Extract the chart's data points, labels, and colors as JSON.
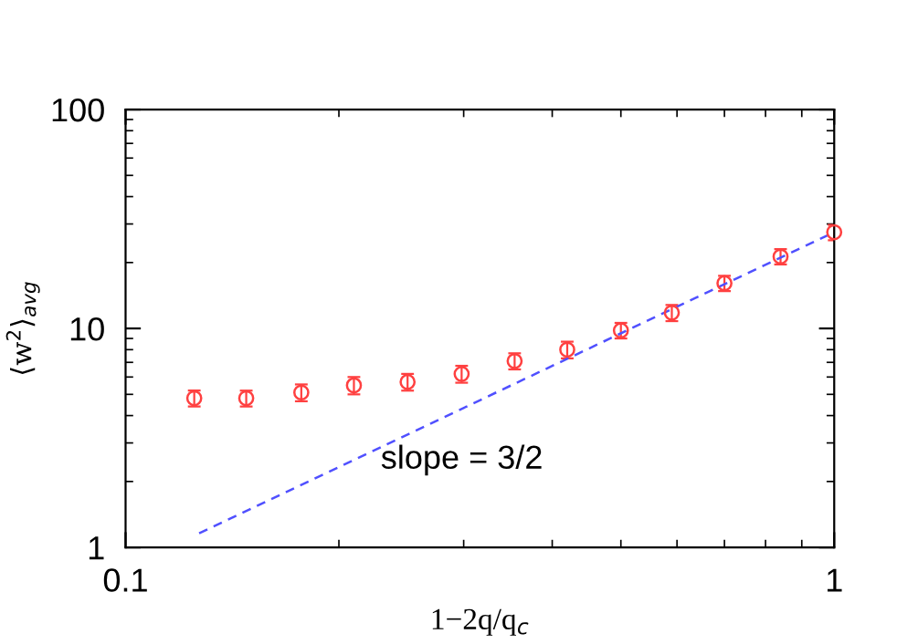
{
  "chart_data": {
    "type": "scatter",
    "xlabel": "1−2q/q$_{c}$",
    "ylabel": "⟨w$^{2}$⟩$_{avg}$",
    "log": "xy",
    "xlim": [
      0.1,
      1
    ],
    "ylim": [
      1,
      100
    ],
    "xticks": [
      0.1,
      1
    ],
    "yticks": [
      1,
      10,
      100
    ],
    "annotations": [
      "slope = 3/2"
    ],
    "grid": false,
    "legend": false,
    "series": [
      {
        "color": "#ff4040",
        "marker": "circle",
        "x": [
          0.125,
          0.148,
          0.177,
          0.21,
          0.25,
          0.298,
          0.354,
          0.42,
          0.5,
          0.59,
          0.7,
          0.84,
          1.0
        ],
        "values": [
          4.8,
          4.8,
          5.1,
          5.5,
          5.7,
          6.2,
          7.1,
          8.0,
          9.8,
          11.8,
          16.1,
          21.3,
          27.5
        ],
        "errors": [
          0.4,
          0.4,
          0.45,
          0.5,
          0.5,
          0.55,
          0.6,
          0.7,
          0.8,
          1.0,
          1.3,
          1.7,
          2.2
        ]
      },
      {
        "type": "line",
        "color": "#5050ff",
        "line_style": "dashed",
        "marker": "none",
        "x": [
          0.127,
          1.0
        ],
        "values": [
          1.16,
          27.5
        ]
      }
    ]
  }
}
